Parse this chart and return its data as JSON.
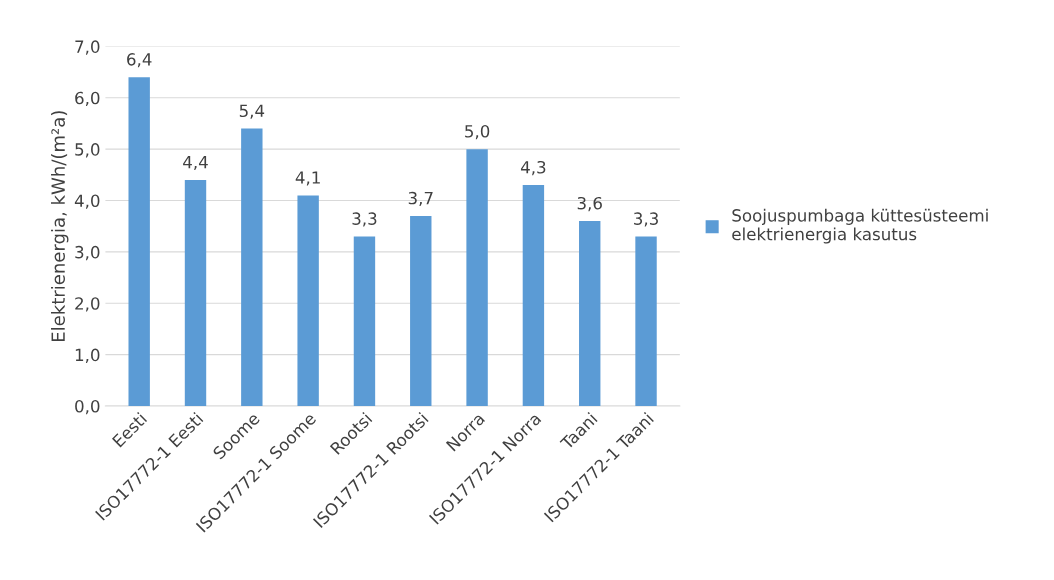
{
  "chart_data": {
    "type": "bar",
    "ylabel": "Elektrienergia, kWh/(m²a)",
    "categories": [
      "Eesti",
      "ISO17772-1 Eesti",
      "Soome",
      "ISO17772-1 Soome",
      "Rootsi",
      "ISO17772-1 Rootsi",
      "Norra",
      "ISO17772-1 Norra",
      "Taani",
      "ISO17772-1 Taani"
    ],
    "series": [
      {
        "name": "Soojuspumbaga küttesüsteemi elektrienergia kasutus",
        "color": "#5b9bd5",
        "values": [
          6.4,
          4.4,
          5.4,
          4.1,
          3.3,
          3.7,
          5.0,
          4.3,
          3.6,
          3.3
        ],
        "value_labels": [
          "6,4",
          "4,4",
          "5,4",
          "4,1",
          "3,3",
          "3,7",
          "5,0",
          "4,3",
          "3,6",
          "3,3"
        ]
      }
    ],
    "ylim": [
      0,
      7
    ],
    "yticks": [
      {
        "value": 0,
        "label": "0,0"
      },
      {
        "value": 1,
        "label": "1,0"
      },
      {
        "value": 2,
        "label": "2,0"
      },
      {
        "value": 3,
        "label": "3,0"
      },
      {
        "value": 4,
        "label": "4,0"
      },
      {
        "value": 5,
        "label": "5,0"
      },
      {
        "value": 6,
        "label": "6,0"
      },
      {
        "value": 7,
        "label": "7,0"
      }
    ],
    "grid": "y",
    "legend": "right"
  }
}
